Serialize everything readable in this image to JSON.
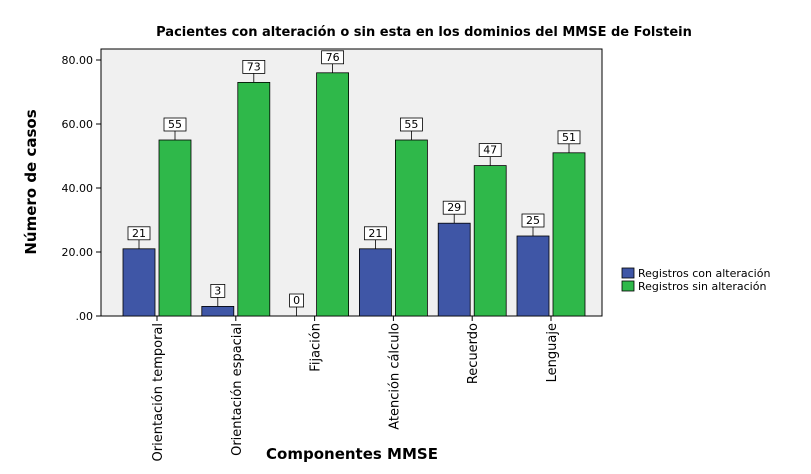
{
  "chart_data": {
    "type": "bar",
    "title": "Pacientes con alteración o sin esta en los dominios del MMSE de Folstein",
    "xlabel": "Componentes MMSE",
    "ylabel": "Número de casos",
    "categories": [
      "Orientación temporal",
      "Orientación espacial",
      "Fijación",
      "Atención cálculo",
      "Recuerdo",
      "Lenguaje"
    ],
    "series": [
      {
        "name": "Registros con alteración",
        "values": [
          21,
          3,
          0,
          21,
          29,
          25
        ],
        "color": "#3f56a6"
      },
      {
        "name": "Registros sin alteración",
        "values": [
          55,
          73,
          76,
          55,
          47,
          51
        ],
        "color": "#2fb84a"
      }
    ],
    "ylim": [
      0,
      80
    ],
    "yticks": [
      ".00",
      "20.00",
      "40.00",
      "60.00",
      "80.00"
    ],
    "yticks_values": [
      0,
      20,
      40,
      60,
      80
    ],
    "grid": false,
    "legend_position": "right",
    "plot_background": "#f0f0f0"
  }
}
